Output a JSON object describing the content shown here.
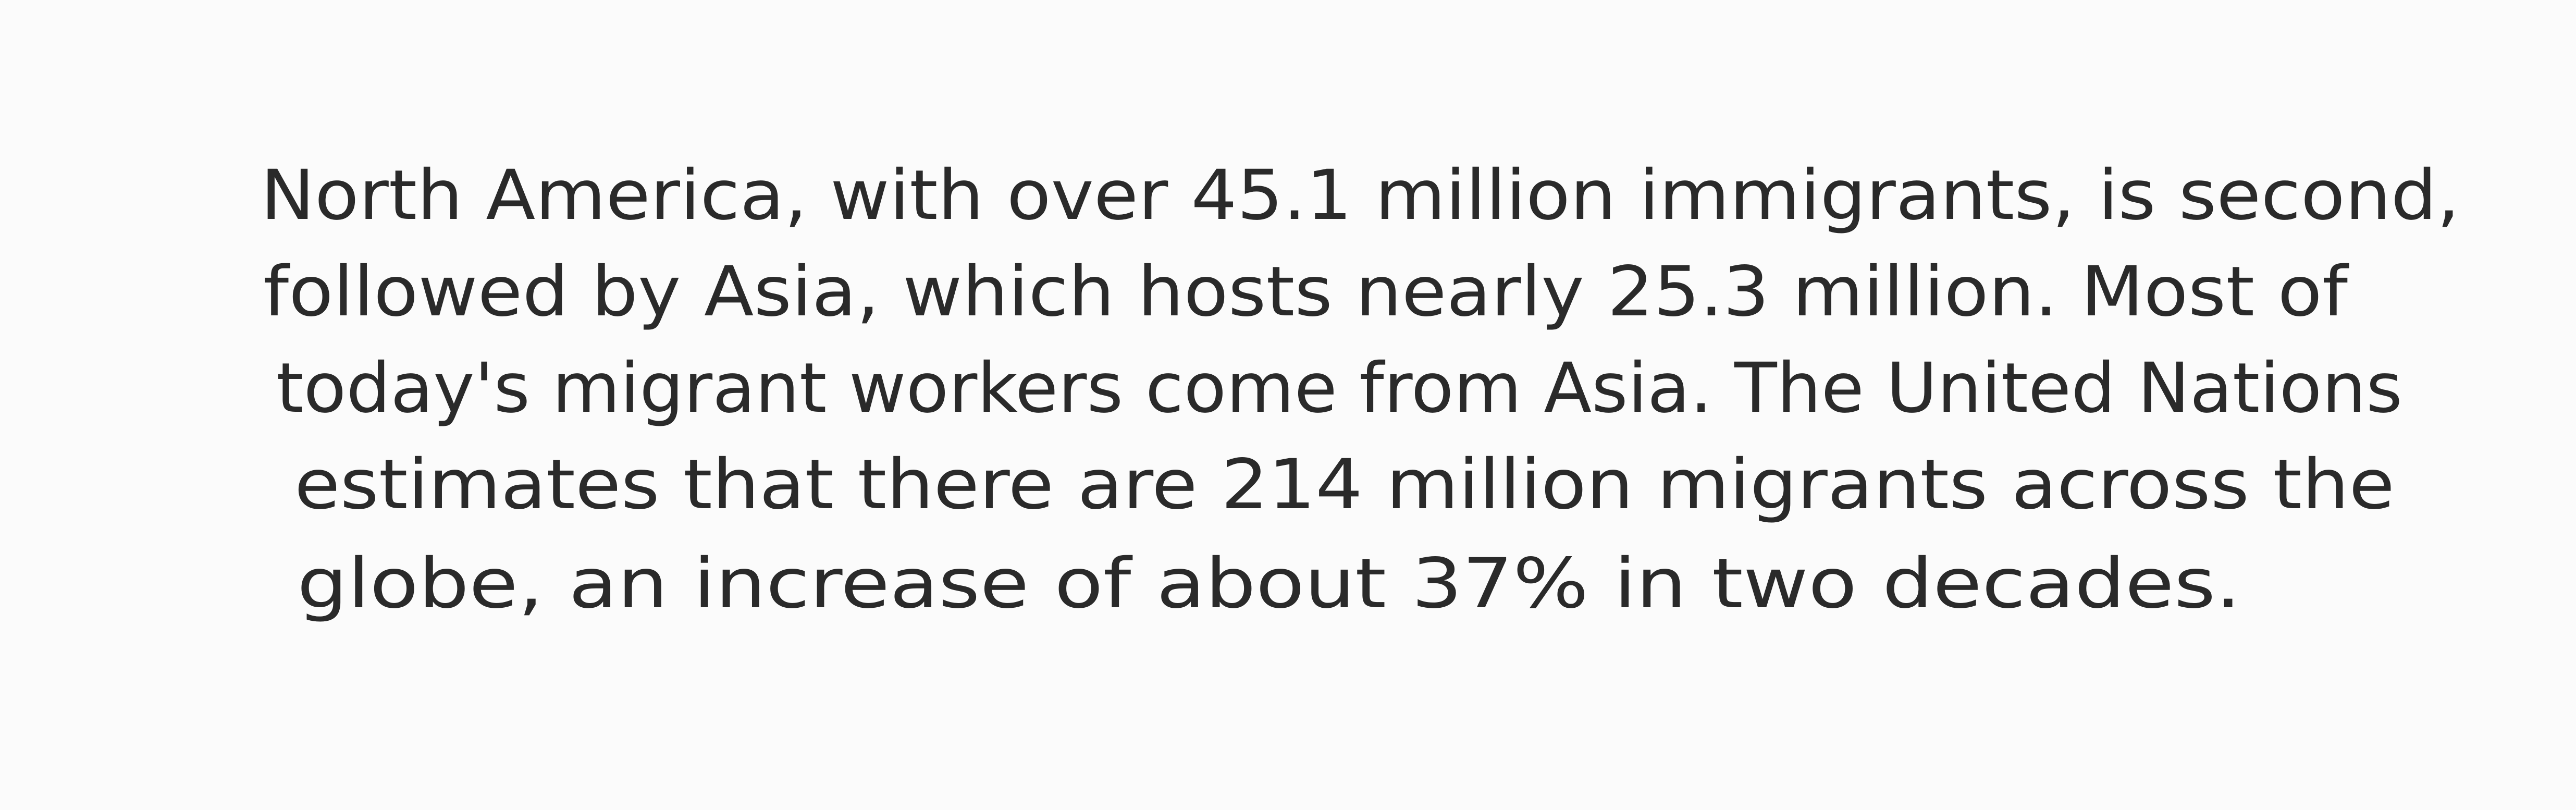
{
  "text": {
    "lines": [
      "North America, with over 45.1 million immigrants, is second,",
      "followed by Asia, which hosts nearly 25.3 million. Most of",
      "today's migrant workers come from Asia. The United Nations",
      "estimates that there are 214 million migrants across the",
      "globe, an increase of about 37% in two decades."
    ]
  }
}
